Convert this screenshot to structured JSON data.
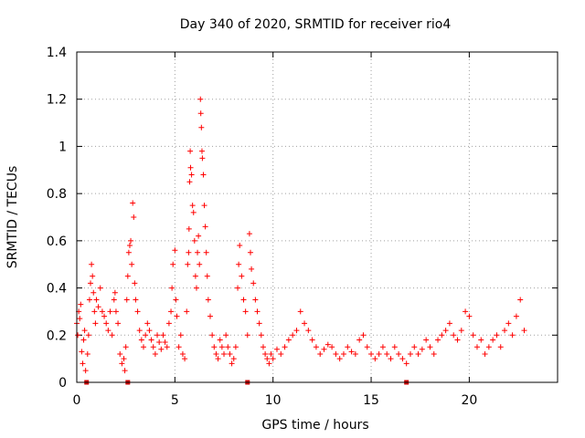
{
  "chart_data": {
    "type": "scatter",
    "title": "Day 340 of 2020, SRMTID for receiver rio4",
    "xlabel": "GPS time / hours",
    "ylabel": "SRMTID / TECUs",
    "xlim": [
      0,
      24.5
    ],
    "ylim": [
      0,
      1.4
    ],
    "x_ticks": [
      0,
      5,
      10,
      15,
      20
    ],
    "x_tick_labels": [
      "0",
      "5",
      "10",
      "15",
      "20"
    ],
    "y_ticks": [
      0,
      0.2,
      0.4,
      0.6,
      0.8,
      1.0,
      1.2,
      1.4
    ],
    "y_tick_labels": [
      "0",
      "0.2",
      "0.4",
      "0.6",
      "0.8",
      "1",
      "1.2",
      "1.4"
    ],
    "grid": true,
    "marker": "+",
    "color": "#ff0000",
    "gap_marker_color": "#cc0000",
    "gap_markers_x": [
      0.5,
      2.6,
      8.7,
      16.8
    ],
    "series": [
      {
        "name": "SRMTID",
        "points": [
          [
            0.0,
            0.25
          ],
          [
            0.05,
            0.2
          ],
          [
            0.1,
            0.3
          ],
          [
            0.15,
            0.27
          ],
          [
            0.2,
            0.33
          ],
          [
            0.25,
            0.13
          ],
          [
            0.3,
            0.08
          ],
          [
            0.35,
            0.18
          ],
          [
            0.4,
            0.22
          ],
          [
            0.45,
            0.05
          ],
          [
            0.55,
            0.12
          ],
          [
            0.6,
            0.2
          ],
          [
            0.65,
            0.35
          ],
          [
            0.7,
            0.42
          ],
          [
            0.75,
            0.5
          ],
          [
            0.8,
            0.45
          ],
          [
            0.85,
            0.38
          ],
          [
            0.9,
            0.3
          ],
          [
            0.95,
            0.25
          ],
          [
            1.0,
            0.35
          ],
          [
            1.1,
            0.32
          ],
          [
            1.2,
            0.4
          ],
          [
            1.3,
            0.3
          ],
          [
            1.4,
            0.28
          ],
          [
            1.5,
            0.25
          ],
          [
            1.6,
            0.22
          ],
          [
            1.7,
            0.3
          ],
          [
            1.8,
            0.2
          ],
          [
            1.9,
            0.35
          ],
          [
            1.95,
            0.38
          ],
          [
            2.0,
            0.3
          ],
          [
            2.1,
            0.25
          ],
          [
            2.2,
            0.12
          ],
          [
            2.3,
            0.08
          ],
          [
            2.4,
            0.1
          ],
          [
            2.45,
            0.05
          ],
          [
            2.5,
            0.15
          ],
          [
            2.55,
            0.35
          ],
          [
            2.6,
            0.45
          ],
          [
            2.65,
            0.55
          ],
          [
            2.7,
            0.58
          ],
          [
            2.75,
            0.6
          ],
          [
            2.8,
            0.5
          ],
          [
            2.85,
            0.76
          ],
          [
            2.9,
            0.7
          ],
          [
            2.95,
            0.42
          ],
          [
            3.0,
            0.35
          ],
          [
            3.1,
            0.3
          ],
          [
            3.2,
            0.22
          ],
          [
            3.3,
            0.18
          ],
          [
            3.4,
            0.15
          ],
          [
            3.5,
            0.2
          ],
          [
            3.6,
            0.25
          ],
          [
            3.7,
            0.22
          ],
          [
            3.8,
            0.18
          ],
          [
            3.9,
            0.15
          ],
          [
            4.0,
            0.12
          ],
          [
            4.1,
            0.2
          ],
          [
            4.2,
            0.17
          ],
          [
            4.3,
            0.14
          ],
          [
            4.4,
            0.2
          ],
          [
            4.5,
            0.17
          ],
          [
            4.6,
            0.15
          ],
          [
            4.7,
            0.25
          ],
          [
            4.8,
            0.3
          ],
          [
            4.85,
            0.4
          ],
          [
            4.9,
            0.5
          ],
          [
            5.0,
            0.56
          ],
          [
            5.05,
            0.35
          ],
          [
            5.1,
            0.28
          ],
          [
            5.2,
            0.15
          ],
          [
            5.3,
            0.2
          ],
          [
            5.4,
            0.12
          ],
          [
            5.5,
            0.1
          ],
          [
            5.6,
            0.3
          ],
          [
            5.65,
            0.5
          ],
          [
            5.7,
            0.55
          ],
          [
            5.72,
            0.65
          ],
          [
            5.75,
            0.85
          ],
          [
            5.78,
            0.98
          ],
          [
            5.8,
            0.91
          ],
          [
            5.85,
            0.88
          ],
          [
            5.9,
            0.75
          ],
          [
            5.95,
            0.72
          ],
          [
            6.0,
            0.6
          ],
          [
            6.05,
            0.45
          ],
          [
            6.1,
            0.4
          ],
          [
            6.15,
            0.55
          ],
          [
            6.2,
            0.62
          ],
          [
            6.25,
            0.5
          ],
          [
            6.3,
            1.2
          ],
          [
            6.32,
            1.14
          ],
          [
            6.35,
            1.08
          ],
          [
            6.38,
            0.98
          ],
          [
            6.4,
            0.95
          ],
          [
            6.45,
            0.88
          ],
          [
            6.5,
            0.75
          ],
          [
            6.55,
            0.66
          ],
          [
            6.6,
            0.55
          ],
          [
            6.65,
            0.45
          ],
          [
            6.7,
            0.35
          ],
          [
            6.8,
            0.28
          ],
          [
            6.9,
            0.2
          ],
          [
            7.0,
            0.15
          ],
          [
            7.1,
            0.12
          ],
          [
            7.2,
            0.1
          ],
          [
            7.3,
            0.18
          ],
          [
            7.4,
            0.15
          ],
          [
            7.5,
            0.12
          ],
          [
            7.6,
            0.2
          ],
          [
            7.7,
            0.15
          ],
          [
            7.8,
            0.12
          ],
          [
            7.9,
            0.08
          ],
          [
            8.0,
            0.1
          ],
          [
            8.1,
            0.15
          ],
          [
            8.2,
            0.4
          ],
          [
            8.25,
            0.5
          ],
          [
            8.3,
            0.58
          ],
          [
            8.4,
            0.45
          ],
          [
            8.5,
            0.35
          ],
          [
            8.6,
            0.3
          ],
          [
            8.7,
            0.2
          ],
          [
            8.8,
            0.63
          ],
          [
            8.85,
            0.55
          ],
          [
            8.9,
            0.48
          ],
          [
            9.0,
            0.42
          ],
          [
            9.1,
            0.35
          ],
          [
            9.2,
            0.3
          ],
          [
            9.3,
            0.25
          ],
          [
            9.4,
            0.2
          ],
          [
            9.5,
            0.15
          ],
          [
            9.6,
            0.12
          ],
          [
            9.7,
            0.1
          ],
          [
            9.8,
            0.08
          ],
          [
            9.9,
            0.12
          ],
          [
            10.0,
            0.1
          ],
          [
            10.2,
            0.14
          ],
          [
            10.4,
            0.12
          ],
          [
            10.6,
            0.15
          ],
          [
            10.8,
            0.18
          ],
          [
            11.0,
            0.2
          ],
          [
            11.2,
            0.22
          ],
          [
            11.4,
            0.3
          ],
          [
            11.6,
            0.25
          ],
          [
            11.8,
            0.22
          ],
          [
            12.0,
            0.18
          ],
          [
            12.2,
            0.15
          ],
          [
            12.4,
            0.12
          ],
          [
            12.6,
            0.14
          ],
          [
            12.8,
            0.16
          ],
          [
            13.0,
            0.15
          ],
          [
            13.2,
            0.12
          ],
          [
            13.4,
            0.1
          ],
          [
            13.6,
            0.12
          ],
          [
            13.8,
            0.15
          ],
          [
            14.0,
            0.13
          ],
          [
            14.2,
            0.12
          ],
          [
            14.4,
            0.18
          ],
          [
            14.6,
            0.2
          ],
          [
            14.8,
            0.15
          ],
          [
            15.0,
            0.12
          ],
          [
            15.2,
            0.1
          ],
          [
            15.4,
            0.12
          ],
          [
            15.6,
            0.15
          ],
          [
            15.8,
            0.12
          ],
          [
            16.0,
            0.1
          ],
          [
            16.2,
            0.15
          ],
          [
            16.4,
            0.12
          ],
          [
            16.6,
            0.1
          ],
          [
            16.8,
            0.08
          ],
          [
            17.0,
            0.12
          ],
          [
            17.2,
            0.15
          ],
          [
            17.4,
            0.12
          ],
          [
            17.6,
            0.14
          ],
          [
            17.8,
            0.18
          ],
          [
            18.0,
            0.15
          ],
          [
            18.2,
            0.12
          ],
          [
            18.4,
            0.18
          ],
          [
            18.6,
            0.2
          ],
          [
            18.8,
            0.22
          ],
          [
            19.0,
            0.25
          ],
          [
            19.2,
            0.2
          ],
          [
            19.4,
            0.18
          ],
          [
            19.6,
            0.22
          ],
          [
            19.8,
            0.3
          ],
          [
            20.0,
            0.28
          ],
          [
            20.2,
            0.2
          ],
          [
            20.4,
            0.15
          ],
          [
            20.6,
            0.18
          ],
          [
            20.8,
            0.12
          ],
          [
            21.0,
            0.15
          ],
          [
            21.2,
            0.18
          ],
          [
            21.4,
            0.2
          ],
          [
            21.6,
            0.15
          ],
          [
            21.8,
            0.22
          ],
          [
            22.0,
            0.25
          ],
          [
            22.2,
            0.2
          ],
          [
            22.4,
            0.28
          ],
          [
            22.6,
            0.35
          ],
          [
            22.8,
            0.22
          ]
        ]
      }
    ]
  }
}
